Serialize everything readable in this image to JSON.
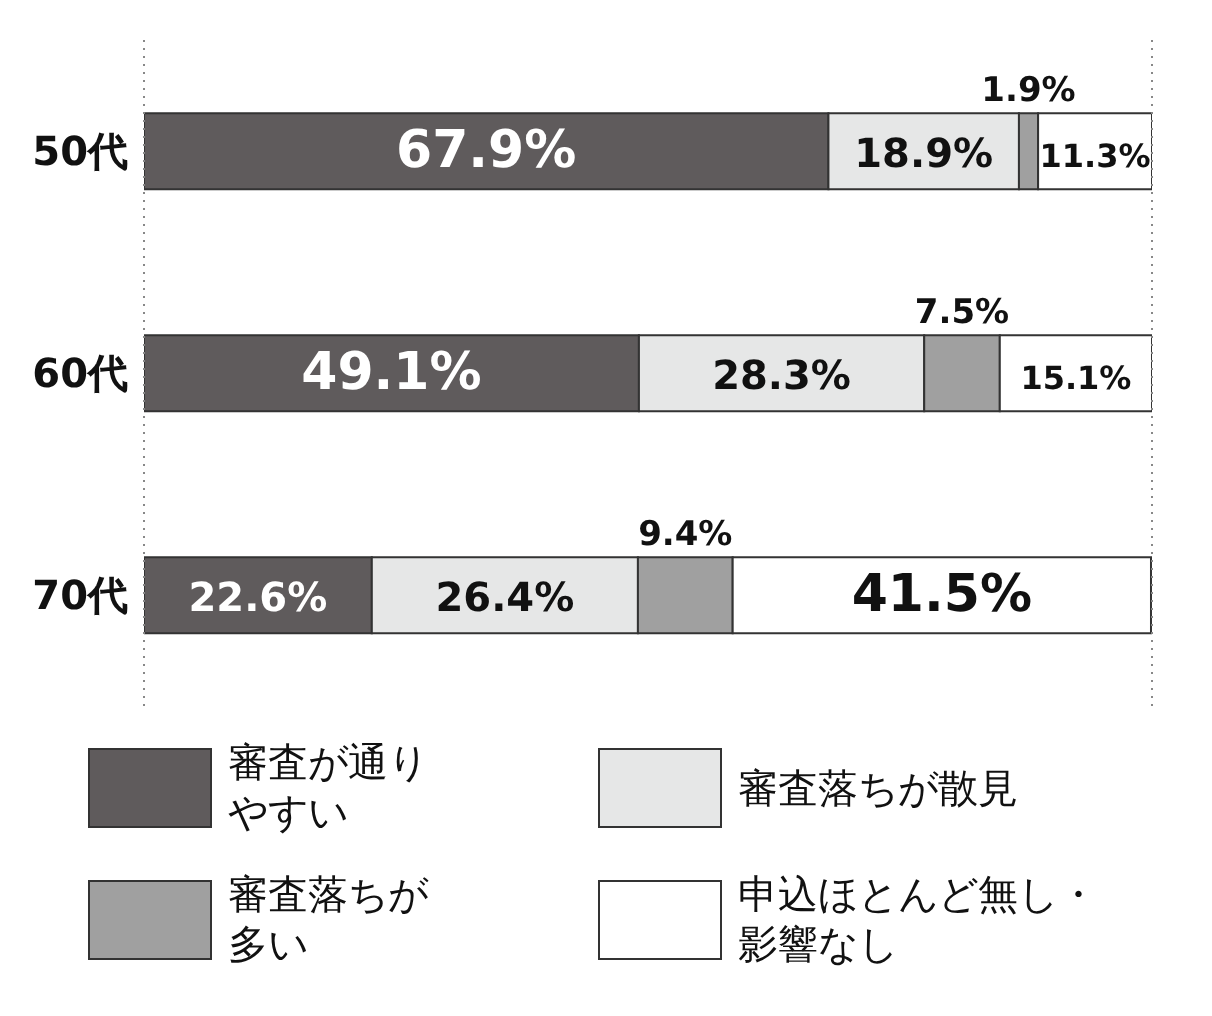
{
  "chart_data": {
    "type": "bar",
    "orientation": "horizontal",
    "stacked": true,
    "categories": [
      "50代",
      "60代",
      "70代"
    ],
    "xlim": [
      0,
      100
    ],
    "xticks": [
      {
        "value": 0,
        "label": null
      },
      {
        "value": 100,
        "label": null
      }
    ],
    "tick_labels": "y",
    "grid": "x",
    "legend": "bottom",
    "series": [
      {
        "name": "審査が通りやすい",
        "color": "#5f5b5c",
        "values": [
          67.9,
          49.1,
          22.6
        ],
        "value_labels": [
          "67.9%",
          "49.1%",
          "22.6%"
        ]
      },
      {
        "name": "審査落ちが散見",
        "color": "#e6e7e7",
        "values": [
          18.9,
          28.3,
          26.4
        ],
        "value_labels": [
          "18.9%",
          "28.3%",
          "26.4%"
        ]
      },
      {
        "name": "審査落ちが多い",
        "color": "#a0a0a0",
        "values": [
          1.9,
          7.5,
          9.4
        ],
        "value_labels": [
          "1.9%",
          "7.5%",
          "9.4%"
        ]
      },
      {
        "name": "申込ほとんど無し・影響なし",
        "color": "#ffffff",
        "values": [
          11.3,
          15.1,
          41.5
        ],
        "value_labels": [
          "11.3%",
          "15.1%",
          "41.5%"
        ]
      }
    ]
  }
}
